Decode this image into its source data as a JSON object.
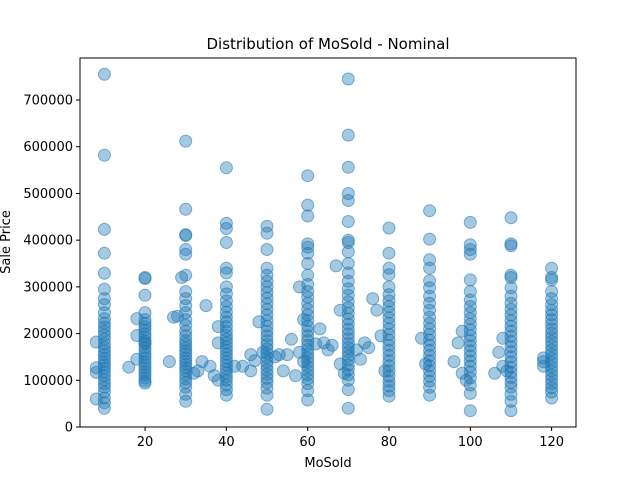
{
  "chart_data": {
    "type": "scatter",
    "title": "Distribution of MoSold - Nominal",
    "xlabel": "MoSold",
    "ylabel": "Sale Price",
    "xlim": [
      4,
      126
    ],
    "ylim": [
      0,
      790000
    ],
    "xticks": [
      20,
      40,
      60,
      80,
      100,
      120
    ],
    "xtick_labels": [
      "20",
      "40",
      "60",
      "80",
      "100",
      "120"
    ],
    "yticks": [
      0,
      100000,
      200000,
      300000,
      400000,
      500000,
      600000,
      700000
    ],
    "ytick_labels": [
      "0",
      "100000",
      "200000",
      "300000",
      "400000",
      "500000",
      "600000",
      "700000"
    ],
    "grid": false,
    "marker_color": "#1f77b4",
    "marker_alpha": 0.4,
    "series": [
      {
        "x": [
          10,
          10,
          10,
          10,
          10,
          10,
          10,
          10,
          10,
          10,
          10,
          10,
          10,
          10,
          10,
          10,
          10,
          10,
          10,
          10,
          10,
          10,
          10,
          10,
          10,
          10,
          10,
          10,
          10,
          10,
          10,
          10
        ],
        "y": [
          755000,
          582000,
          423000,
          372000,
          329000,
          295000,
          275000,
          262000,
          245000,
          232000,
          222000,
          214000,
          205000,
          197000,
          188000,
          178000,
          170000,
          162000,
          155000,
          147000,
          140000,
          133000,
          126000,
          118000,
          110000,
          101000,
          93000,
          85000,
          75000,
          62000,
          52000,
          40000
        ]
      },
      {
        "x": [
          8,
          8,
          8,
          8,
          16,
          20,
          20,
          20,
          20,
          20,
          20,
          20,
          20,
          20,
          20,
          20,
          20,
          20,
          20,
          20,
          20,
          20,
          20,
          20,
          20,
          20,
          20,
          20,
          20,
          20
        ],
        "y": [
          182000,
          127000,
          117000,
          60000,
          128000,
          320000,
          318000,
          282000,
          245000,
          230000,
          222000,
          215000,
          208000,
          200000,
          193000,
          185000,
          178000,
          170000,
          162000,
          155000,
          148000,
          140000,
          133000,
          126000,
          119000,
          112000,
          105000,
          98000,
          94000,
          181000
        ]
      },
      {
        "x": [
          18,
          18,
          18,
          26,
          27,
          28,
          29,
          30,
          30,
          30,
          30,
          30,
          30,
          30,
          30,
          30,
          30,
          30,
          30,
          30,
          30,
          30,
          30,
          30,
          30,
          30,
          30,
          30,
          30,
          30,
          30,
          30,
          30,
          30,
          30,
          30,
          30,
          30
        ],
        "y": [
          232000,
          196000,
          145000,
          140000,
          235000,
          237000,
          320000,
          612000,
          466000,
          412000,
          410000,
          380000,
          370000,
          325000,
          290000,
          275000,
          260000,
          245000,
          230000,
          218000,
          205000,
          195000,
          185000,
          178000,
          170000,
          163000,
          156000,
          148000,
          141000,
          134000,
          127000,
          120000,
          112000,
          103000,
          95000,
          85000,
          70000,
          55000
        ]
      },
      {
        "x": [
          32,
          33,
          34,
          35,
          36,
          37,
          38,
          38,
          38,
          40,
          40,
          40,
          40,
          40,
          40,
          40,
          40,
          40,
          40,
          40,
          40,
          40,
          40,
          40,
          40,
          40,
          40,
          40,
          40,
          40,
          40,
          40,
          40,
          40,
          40,
          40,
          40,
          40,
          40,
          40
        ],
        "y": [
          115000,
          120000,
          140000,
          260000,
          130000,
          110000,
          180000,
          215000,
          100000,
          555000,
          436000,
          425000,
          395000,
          340000,
          330000,
          300000,
          285000,
          270000,
          258000,
          246000,
          235000,
          225000,
          215000,
          205000,
          196000,
          188000,
          180000,
          172000,
          164000,
          156000,
          148000,
          140000,
          132000,
          124000,
          116000,
          108000,
          100000,
          90000,
          80000,
          68000
        ]
      },
      {
        "x": [
          42,
          44,
          46,
          46,
          47,
          48,
          49,
          50,
          50,
          50,
          50,
          50,
          50,
          50,
          50,
          50,
          50,
          50,
          50,
          50,
          50,
          50,
          50,
          50,
          50,
          50,
          50,
          50,
          50,
          50,
          50,
          50,
          50,
          50,
          50,
          50,
          50
        ],
        "y": [
          130000,
          130000,
          155000,
          120000,
          142000,
          225000,
          160000,
          430000,
          415000,
          380000,
          340000,
          325000,
          312000,
          300000,
          288000,
          276000,
          264000,
          252000,
          240000,
          228000,
          216000,
          205000,
          195000,
          185000,
          176000,
          167000,
          158000,
          149000,
          140000,
          131000,
          122000,
          113000,
          104000,
          95000,
          83000,
          68000,
          38000
        ]
      },
      {
        "x": [
          52,
          53,
          54,
          55,
          56,
          57,
          58,
          58,
          59,
          59,
          60,
          60,
          60,
          60,
          60,
          60,
          60,
          60,
          60,
          60,
          60,
          60,
          60,
          60,
          60,
          60,
          60,
          60,
          60,
          60,
          60,
          60,
          60,
          60,
          60,
          60,
          60,
          60,
          60,
          60,
          60
        ],
        "y": [
          150000,
          155000,
          120000,
          155000,
          188000,
          110000,
          300000,
          160000,
          230000,
          140000,
          538000,
          475000,
          452000,
          392000,
          385000,
          372000,
          350000,
          325000,
          305000,
          290000,
          278000,
          265000,
          252000,
          240000,
          228000,
          216000,
          205000,
          195000,
          185000,
          175000,
          166000,
          157000,
          148000,
          139000,
          130000,
          121000,
          112000,
          103000,
          93000,
          78000,
          58000
        ]
      },
      {
        "x": [
          62,
          63,
          64,
          65,
          66,
          67,
          68,
          68,
          69,
          70,
          70,
          70,
          70,
          70,
          70,
          70,
          70,
          70,
          70,
          70,
          70,
          70,
          70,
          70,
          70,
          70,
          70,
          70,
          70,
          70,
          70,
          70,
          70,
          70,
          70,
          70,
          70,
          70,
          70,
          70,
          70,
          70
        ],
        "y": [
          178000,
          210000,
          180000,
          165000,
          175000,
          345000,
          250000,
          135000,
          115000,
          745000,
          625000,
          556000,
          500000,
          485000,
          440000,
          400000,
          395000,
          375000,
          350000,
          330000,
          312000,
          296000,
          282000,
          268000,
          255000,
          243000,
          231000,
          220000,
          209000,
          199000,
          189000,
          179000,
          170000,
          161000,
          152000,
          143000,
          133000,
          123000,
          112000,
          100000,
          80000,
          40000
        ]
      },
      {
        "x": [
          72,
          73,
          74,
          75,
          76,
          77,
          78,
          79,
          80,
          80,
          80,
          80,
          80,
          80,
          80,
          80,
          80,
          80,
          80,
          80,
          80,
          80,
          80,
          80,
          80,
          80,
          80,
          80,
          80,
          80,
          80,
          80,
          80
        ],
        "y": [
          165000,
          145000,
          180000,
          170000,
          275000,
          250000,
          195000,
          120000,
          426000,
          372000,
          340000,
          326000,
          300000,
          283000,
          270000,
          258000,
          246000,
          234000,
          222000,
          210000,
          198000,
          186000,
          175000,
          164000,
          153000,
          142000,
          131000,
          120000,
          109000,
          98000,
          88000,
          78000,
          66000
        ]
      },
      {
        "x": [
          88,
          89,
          90,
          90,
          90,
          90,
          90,
          90,
          90,
          90,
          90,
          90,
          90,
          90,
          90,
          90,
          90,
          90,
          90,
          90,
          90,
          90,
          90,
          90,
          90,
          90
        ],
        "y": [
          190000,
          135000,
          463000,
          402000,
          358000,
          340000,
          313000,
          298000,
          280000,
          265000,
          250000,
          235000,
          222000,
          210000,
          198000,
          186000,
          175000,
          164000,
          153000,
          142000,
          131000,
          120000,
          109000,
          98000,
          85000,
          68000
        ]
      },
      {
        "x": [
          96,
          97,
          98,
          98,
          99,
          100,
          100,
          100,
          100,
          100,
          100,
          100,
          100,
          100,
          100,
          100,
          100,
          100,
          100,
          100,
          100,
          100,
          100,
          100,
          100,
          100,
          100,
          100,
          100
        ],
        "y": [
          140000,
          180000,
          205000,
          115000,
          100000,
          438000,
          390000,
          380000,
          370000,
          315000,
          290000,
          272000,
          258000,
          245000,
          232000,
          220000,
          208000,
          196000,
          185000,
          174000,
          163000,
          152000,
          141000,
          130000,
          118000,
          105000,
          90000,
          72000,
          35000
        ]
      },
      {
        "x": [
          106,
          107,
          108,
          108,
          109,
          110,
          110,
          110,
          110,
          110,
          110,
          110,
          110,
          110,
          110,
          110,
          110,
          110,
          110,
          110,
          110,
          110,
          110,
          110,
          110,
          110,
          110,
          110,
          110,
          110,
          110,
          110
        ],
        "y": [
          115000,
          160000,
          190000,
          130000,
          120000,
          448000,
          392000,
          388000,
          325000,
          320000,
          298000,
          280000,
          265000,
          252000,
          240000,
          228000,
          216000,
          205000,
          194000,
          183000,
          172000,
          161000,
          150000,
          139000,
          128000,
          117000,
          106000,
          95000,
          85000,
          70000,
          55000,
          35000
        ]
      },
      {
        "x": [
          118,
          118,
          118,
          120,
          120,
          120,
          120,
          120,
          120,
          120,
          120,
          120,
          120,
          120,
          120,
          120,
          120,
          120,
          120,
          120,
          120,
          120,
          120,
          120,
          120,
          120,
          120,
          120,
          120,
          120
        ],
        "y": [
          148000,
          140000,
          130000,
          340000,
          320000,
          315000,
          290000,
          275000,
          262000,
          250000,
          240000,
          230000,
          220000,
          210000,
          201000,
          192000,
          183000,
          174000,
          165000,
          156000,
          147000,
          138000,
          129000,
          120000,
          111000,
          102000,
          93000,
          84000,
          75000,
          62000
        ]
      }
    ]
  }
}
